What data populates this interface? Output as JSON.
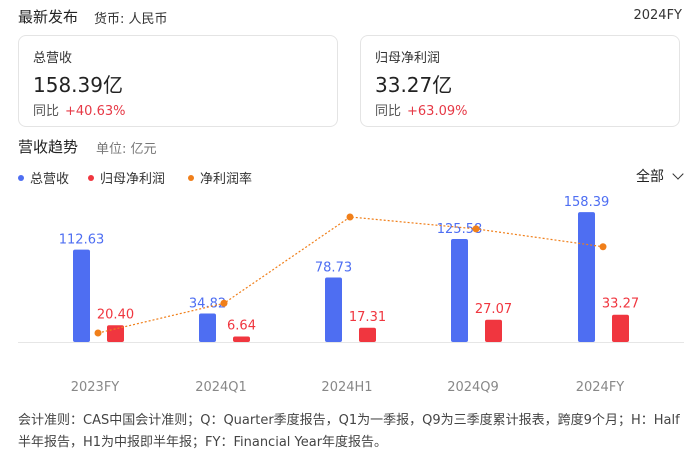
{
  "header": {
    "title": "最新发布",
    "currency": "货币: 人民币",
    "period": "2024FY"
  },
  "cards": [
    {
      "label": "总营收",
      "value": "158.39亿",
      "yoy_label": "同比",
      "yoy_value": "+40.63%"
    },
    {
      "label": "归母净利润",
      "value": "33.27亿",
      "yoy_label": "同比",
      "yoy_value": "+63.09%"
    }
  ],
  "trend": {
    "title": "营收趋势",
    "unit": "单位: 亿元",
    "filter_label": "全部"
  },
  "chart_data": {
    "type": "bar",
    "categories": [
      "2023FY",
      "2024Q1",
      "2024H1",
      "2024Q9",
      "2024FY"
    ],
    "series": [
      {
        "name": "总营收",
        "kind": "bar",
        "color": "#4e6ef2",
        "values": [
          112.63,
          34.82,
          78.73,
          125.58,
          158.39
        ]
      },
      {
        "name": "归母净利润",
        "kind": "bar",
        "color": "#f0363f",
        "values": [
          20.4,
          6.64,
          17.31,
          27.07,
          33.27
        ]
      },
      {
        "name": "净利润率",
        "kind": "line",
        "color": "#f07f1a",
        "values": [
          18.1,
          19.1,
          22.0,
          21.6,
          21.0
        ]
      }
    ],
    "legend_position": "top-left",
    "grid": false
  },
  "footnote": "会计准则：CAS中国会计准则；Q：Quarter季度报告，Q1为一季报，Q9为三季度累计报表，跨度9个月；H：Half半年报告，H1为中报即半年报；FY：Financial Year年度报告。"
}
